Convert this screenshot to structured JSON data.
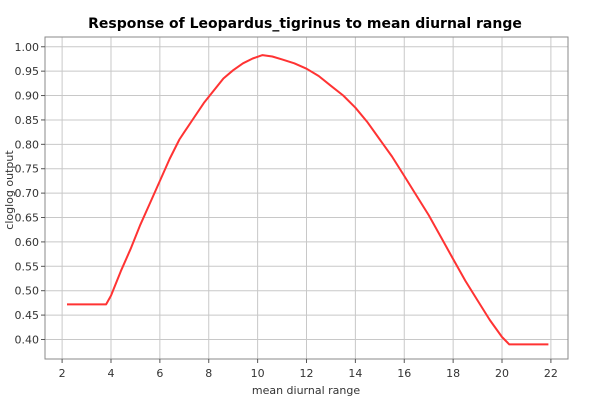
{
  "chart_data": {
    "type": "line",
    "title": "Response of Leopardus_tigrinus to mean diurnal range",
    "xlabel": "mean diurnal range",
    "ylabel": "cloglog output",
    "xlim": [
      1.3,
      22.7
    ],
    "ylim": [
      0.36,
      1.02
    ],
    "xticks": [
      2,
      4,
      6,
      8,
      10,
      12,
      14,
      16,
      18,
      20,
      22
    ],
    "xtick_labels": [
      "2",
      "4",
      "6",
      "8",
      "10",
      "12",
      "14",
      "16",
      "18",
      "20",
      "22"
    ],
    "yticks": [
      0.4,
      0.45,
      0.5,
      0.55,
      0.6,
      0.65,
      0.7,
      0.75,
      0.8,
      0.85,
      0.9,
      0.95,
      1.0
    ],
    "ytick_labels": [
      "0.40",
      "0.45",
      "0.50",
      "0.55",
      "0.60",
      "0.65",
      "0.70",
      "0.75",
      "0.80",
      "0.85",
      "0.90",
      "0.95",
      "1.00"
    ],
    "grid": true,
    "colors": {
      "series": "#ff3333"
    },
    "series": [
      {
        "x": [
          2.2,
          3.8,
          4.0,
          4.4,
          4.8,
          5.2,
          5.6,
          6.0,
          6.4,
          6.8,
          7.0,
          7.4,
          7.8,
          8.2,
          8.6,
          9.0,
          9.4,
          9.8,
          10.2,
          10.6,
          11.0,
          11.5,
          12.0,
          12.5,
          13.0,
          13.5,
          14.0,
          14.5,
          15.0,
          15.5,
          16.0,
          16.5,
          17.0,
          17.5,
          18.0,
          18.5,
          19.0,
          19.5,
          20.0,
          20.3,
          21.0,
          21.9
        ],
        "y": [
          0.472,
          0.472,
          0.49,
          0.54,
          0.585,
          0.635,
          0.68,
          0.725,
          0.77,
          0.81,
          0.825,
          0.855,
          0.885,
          0.91,
          0.935,
          0.952,
          0.966,
          0.976,
          0.983,
          0.98,
          0.974,
          0.966,
          0.955,
          0.94,
          0.92,
          0.9,
          0.875,
          0.845,
          0.81,
          0.775,
          0.735,
          0.695,
          0.655,
          0.61,
          0.565,
          0.52,
          0.48,
          0.44,
          0.405,
          0.39,
          0.39,
          0.39
        ]
      }
    ]
  }
}
